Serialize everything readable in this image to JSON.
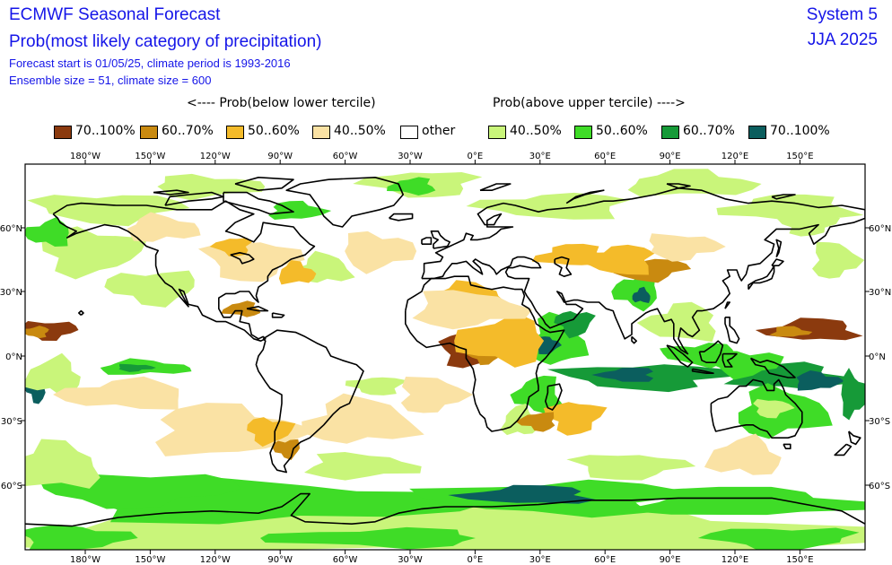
{
  "header": {
    "title": "ECMWF Seasonal Forecast",
    "subtitle": "Prob(most likely category of precipitation)",
    "forecast_info": "Forecast start is 01/05/25, climate period is 1993-2016",
    "ensemble_info": "Ensemble size = 51, climate size = 600",
    "system": "System 5",
    "season": "JJA 2025",
    "text_color": "#1515e8"
  },
  "tercile_labels": {
    "below": "<---- Prob(below lower tercile)",
    "above": "Prob(above upper tercile) ---->"
  },
  "legend": [
    {
      "label": "70..100%",
      "color": "#8b3a0e"
    },
    {
      "label": "60..70%",
      "color": "#c98a10"
    },
    {
      "label": "50..60%",
      "color": "#f4bb2a"
    },
    {
      "label": "40..50%",
      "color": "#fae2a4"
    },
    {
      "label": "other",
      "color": "#ffffff"
    },
    {
      "label": "40..50%",
      "color": "#c9f57a"
    },
    {
      "label": "50..60%",
      "color": "#3fdc27"
    },
    {
      "label": "60..70%",
      "color": "#169a38"
    },
    {
      "label": "70..100%",
      "color": "#0b5e5e"
    }
  ],
  "axes": {
    "lon_labels": [
      "180°W",
      "150°W",
      "120°W",
      "90°W",
      "60°W",
      "30°W",
      "0°E",
      "30°E",
      "60°E",
      "90°E",
      "120°E",
      "150°E"
    ],
    "lat_labels": [
      "60°N",
      "30°N",
      "0°N",
      "30°S",
      "60°S"
    ]
  }
}
